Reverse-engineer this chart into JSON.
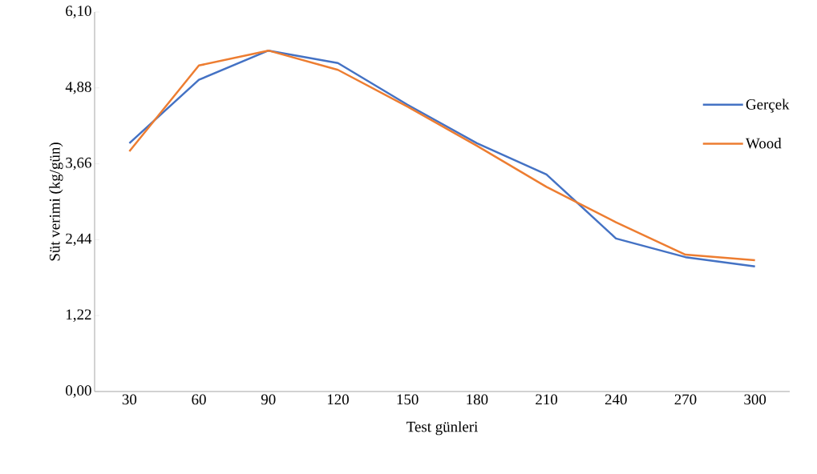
{
  "chart_data": {
    "type": "line",
    "xlabel": "Test günleri",
    "ylabel": "Süt verimi (kg/gün)",
    "categories": [
      "30",
      "60",
      "90",
      "120",
      "150",
      "180",
      "210",
      "240",
      "270",
      "300"
    ],
    "series": [
      {
        "name": "Gerçek",
        "color": "#4472c4",
        "values": [
          3.99,
          5.01,
          5.48,
          5.28,
          4.61,
          3.99,
          3.49,
          2.46,
          2.16,
          2.01
        ]
      },
      {
        "name": "Wood",
        "color": "#ed7d31",
        "values": [
          3.86,
          5.24,
          5.48,
          5.17,
          4.58,
          3.95,
          3.29,
          2.72,
          2.2,
          2.11
        ]
      }
    ],
    "ylim": [
      0,
      6.1
    ],
    "yticks": [
      {
        "value": 0,
        "label": "0,00"
      },
      {
        "value": 1.22,
        "label": "1,22"
      },
      {
        "value": 2.44,
        "label": "2,44"
      },
      {
        "value": 3.66,
        "label": "3,66"
      },
      {
        "value": 4.88,
        "label": "4,88"
      },
      {
        "value": 6.1,
        "label": "6,10"
      }
    ],
    "legend": "right",
    "grid": false,
    "line_style": "solid"
  }
}
